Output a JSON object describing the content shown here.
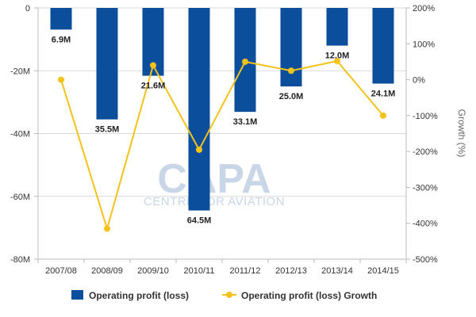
{
  "chart_data": {
    "type": "bar",
    "categories": [
      "2007/08",
      "2008/09",
      "2009/10",
      "2010/11",
      "2011/12",
      "2012/13",
      "2013/14",
      "2014/15"
    ],
    "series": [
      {
        "name": "Operating profit (loss)",
        "kind": "bar",
        "axis": "left",
        "color": "#0b4f9c",
        "values": [
          -6.9,
          -35.5,
          -21.6,
          -64.5,
          -33.1,
          -25.0,
          -12.0,
          -24.1
        ],
        "labels": [
          "6.9M",
          "35.5M",
          "21.6M",
          "64.5M",
          "33.1M",
          "25.0M",
          "12.0M",
          "24.1M"
        ]
      },
      {
        "name": "Operating profit (loss) Growth",
        "kind": "line",
        "axis": "right",
        "color": "#f5c21b",
        "values": [
          0,
          -415,
          40,
          -195,
          50,
          25,
          52,
          -100
        ]
      }
    ],
    "y_left": {
      "min": -80,
      "max": 0,
      "ticks": [
        0,
        -20,
        -40,
        -60,
        -80
      ],
      "tick_labels": [
        "0",
        "-20M",
        "-40M",
        "-60M",
        "-80M"
      ]
    },
    "y_right": {
      "min": -500,
      "max": 200,
      "ticks": [
        200,
        100,
        0,
        -100,
        -200,
        -300,
        -400,
        -500
      ],
      "tick_labels": [
        "200%",
        "100%",
        "0%",
        "-100%",
        "-200%",
        "-300%",
        "-400%",
        "-500%"
      ],
      "label": "Growth (%)"
    },
    "grid": true,
    "legend": "bottom",
    "watermark": {
      "main": "CAPA",
      "sub": "CENTRE FOR AVIATION"
    }
  }
}
